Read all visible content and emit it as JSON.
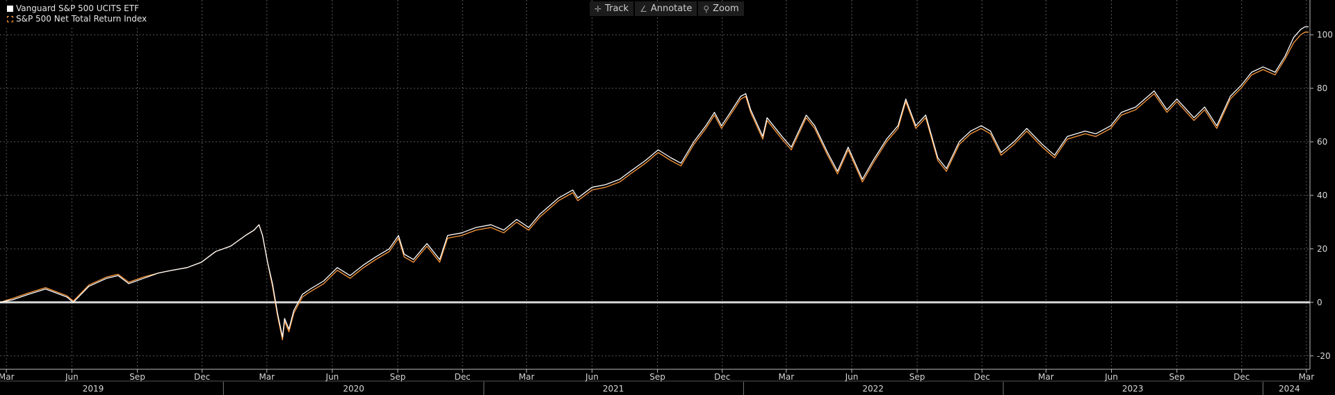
{
  "toolbar": {
    "track_label": "Track",
    "annotate_label": "Annotate",
    "zoom_label": "Zoom"
  },
  "legend": [
    {
      "name": "Vanguard S&P 500 UCITS ETF",
      "color": "#ffffff"
    },
    {
      "name": "S&P 500 Net Total Return Index",
      "color": "#ff9a3c"
    }
  ],
  "chart_data": {
    "type": "line",
    "title": "",
    "xlabel": "",
    "ylabel": "",
    "xlim": [
      "2019-02-20",
      "2024-03-06"
    ],
    "ylim": [
      -25,
      113
    ],
    "y_ticks": [
      -20,
      0,
      20,
      40,
      60,
      80,
      100
    ],
    "grid": true,
    "legend_position": "top-left",
    "baseline": 0,
    "x_tick_labels": [
      {
        "date": "2019-03-01",
        "label": "Mar"
      },
      {
        "date": "2019-06-01",
        "label": "Jun"
      },
      {
        "date": "2019-09-01",
        "label": "Sep"
      },
      {
        "date": "2019-12-01",
        "label": "Dec"
      },
      {
        "date": "2020-03-01",
        "label": "Mar"
      },
      {
        "date": "2020-06-01",
        "label": "Jun"
      },
      {
        "date": "2020-09-01",
        "label": "Sep"
      },
      {
        "date": "2020-12-01",
        "label": "Dec"
      },
      {
        "date": "2021-03-01",
        "label": "Mar"
      },
      {
        "date": "2021-06-01",
        "label": "Jun"
      },
      {
        "date": "2021-09-01",
        "label": "Sep"
      },
      {
        "date": "2021-12-01",
        "label": "Dec"
      },
      {
        "date": "2022-03-01",
        "label": "Mar"
      },
      {
        "date": "2022-06-01",
        "label": "Jun"
      },
      {
        "date": "2022-09-01",
        "label": "Sep"
      },
      {
        "date": "2022-12-01",
        "label": "Dec"
      },
      {
        "date": "2023-03-01",
        "label": "Mar"
      },
      {
        "date": "2023-06-01",
        "label": "Jun"
      },
      {
        "date": "2023-09-01",
        "label": "Sep"
      },
      {
        "date": "2023-12-01",
        "label": "Dec"
      },
      {
        "date": "2024-03-01",
        "label": "Mar"
      }
    ],
    "year_labels": [
      {
        "year": "2019",
        "date": "2019-07-01"
      },
      {
        "year": "2020",
        "date": "2020-07-01"
      },
      {
        "year": "2021",
        "date": "2021-07-01"
      },
      {
        "year": "2022",
        "date": "2022-07-01"
      },
      {
        "year": "2023",
        "date": "2023-07-01"
      },
      {
        "year": "2024",
        "date": "2024-02-06"
      }
    ],
    "year_separators": [
      "2019-12-31",
      "2020-12-31",
      "2021-12-31",
      "2022-12-31",
      "2023-12-31"
    ],
    "series": [
      {
        "name": "Vanguard S&P 500 UCITS ETF",
        "color": "#ffffff",
        "points": [
          [
            "2019-02-20",
            0
          ],
          [
            "2019-03-10",
            1
          ],
          [
            "2019-04-01",
            3
          ],
          [
            "2019-04-25",
            5
          ],
          [
            "2019-05-05",
            4
          ],
          [
            "2019-05-25",
            2
          ],
          [
            "2019-06-03",
            0
          ],
          [
            "2019-06-25",
            6
          ],
          [
            "2019-07-20",
            9
          ],
          [
            "2019-08-05",
            10
          ],
          [
            "2019-08-20",
            7
          ],
          [
            "2019-09-10",
            9
          ],
          [
            "2019-10-01",
            11
          ],
          [
            "2019-10-20",
            12
          ],
          [
            "2019-11-10",
            13
          ],
          [
            "2019-11-30",
            15
          ],
          [
            "2019-12-20",
            19
          ],
          [
            "2020-01-10",
            21
          ],
          [
            "2020-01-31",
            25
          ],
          [
            "2020-02-12",
            27
          ],
          [
            "2020-02-19",
            29
          ],
          [
            "2020-02-24",
            25
          ],
          [
            "2020-03-02",
            15
          ],
          [
            "2020-03-09",
            7
          ],
          [
            "2020-03-16",
            -4
          ],
          [
            "2020-03-23",
            -13
          ],
          [
            "2020-03-26",
            -6
          ],
          [
            "2020-04-01",
            -10
          ],
          [
            "2020-04-08",
            -3
          ],
          [
            "2020-04-20",
            3
          ],
          [
            "2020-05-01",
            5
          ],
          [
            "2020-05-20",
            8
          ],
          [
            "2020-06-08",
            13
          ],
          [
            "2020-06-26",
            10
          ],
          [
            "2020-07-15",
            14
          ],
          [
            "2020-08-01",
            17
          ],
          [
            "2020-08-20",
            20
          ],
          [
            "2020-09-02",
            25
          ],
          [
            "2020-09-10",
            18
          ],
          [
            "2020-09-23",
            16
          ],
          [
            "2020-10-12",
            22
          ],
          [
            "2020-10-30",
            16
          ],
          [
            "2020-11-10",
            25
          ],
          [
            "2020-11-30",
            26
          ],
          [
            "2020-12-20",
            28
          ],
          [
            "2021-01-10",
            29
          ],
          [
            "2021-01-28",
            27
          ],
          [
            "2021-02-15",
            31
          ],
          [
            "2021-03-04",
            28
          ],
          [
            "2021-03-20",
            33
          ],
          [
            "2021-04-15",
            39
          ],
          [
            "2021-05-05",
            42
          ],
          [
            "2021-05-12",
            39
          ],
          [
            "2021-06-01",
            43
          ],
          [
            "2021-06-20",
            44
          ],
          [
            "2021-07-10",
            46
          ],
          [
            "2021-07-25",
            49
          ],
          [
            "2021-08-15",
            53
          ],
          [
            "2021-09-02",
            57
          ],
          [
            "2021-09-20",
            54
          ],
          [
            "2021-10-04",
            52
          ],
          [
            "2021-10-22",
            60
          ],
          [
            "2021-11-08",
            66
          ],
          [
            "2021-11-20",
            71
          ],
          [
            "2021-11-30",
            66
          ],
          [
            "2021-12-10",
            70
          ],
          [
            "2021-12-27",
            77
          ],
          [
            "2022-01-03",
            78
          ],
          [
            "2022-01-10",
            72
          ],
          [
            "2022-01-27",
            62
          ],
          [
            "2022-02-02",
            69
          ],
          [
            "2022-02-23",
            62
          ],
          [
            "2022-03-08",
            58
          ],
          [
            "2022-03-29",
            70
          ],
          [
            "2022-04-10",
            66
          ],
          [
            "2022-04-28",
            56
          ],
          [
            "2022-05-12",
            49
          ],
          [
            "2022-05-27",
            58
          ],
          [
            "2022-06-16",
            46
          ],
          [
            "2022-07-01",
            53
          ],
          [
            "2022-07-20",
            61
          ],
          [
            "2022-08-05",
            66
          ],
          [
            "2022-08-16",
            76
          ],
          [
            "2022-08-30",
            66
          ],
          [
            "2022-09-13",
            70
          ],
          [
            "2022-09-30",
            54
          ],
          [
            "2022-10-12",
            50
          ],
          [
            "2022-10-30",
            60
          ],
          [
            "2022-11-15",
            64
          ],
          [
            "2022-11-30",
            66
          ],
          [
            "2022-12-13",
            64
          ],
          [
            "2022-12-28",
            56
          ],
          [
            "2023-01-15",
            60
          ],
          [
            "2023-02-02",
            65
          ],
          [
            "2023-02-24",
            59
          ],
          [
            "2023-03-13",
            55
          ],
          [
            "2023-03-31",
            62
          ],
          [
            "2023-04-25",
            64
          ],
          [
            "2023-05-10",
            63
          ],
          [
            "2023-05-31",
            66
          ],
          [
            "2023-06-15",
            71
          ],
          [
            "2023-07-05",
            73
          ],
          [
            "2023-07-31",
            79
          ],
          [
            "2023-08-18",
            72
          ],
          [
            "2023-09-01",
            76
          ],
          [
            "2023-09-25",
            69
          ],
          [
            "2023-10-10",
            73
          ],
          [
            "2023-10-27",
            66
          ],
          [
            "2023-11-15",
            77
          ],
          [
            "2023-11-30",
            81
          ],
          [
            "2023-12-15",
            86
          ],
          [
            "2023-12-31",
            88
          ],
          [
            "2024-01-17",
            86
          ],
          [
            "2024-01-31",
            92
          ],
          [
            "2024-02-12",
            99
          ],
          [
            "2024-02-22",
            102
          ],
          [
            "2024-02-28",
            103
          ],
          [
            "2024-03-04",
            103
          ]
        ]
      },
      {
        "name": "S&P 500 Net Total Return Index",
        "color": "#ff9a3c",
        "points": [
          [
            "2019-02-20",
            0
          ],
          [
            "2019-03-10",
            1.5
          ],
          [
            "2019-04-01",
            3.5
          ],
          [
            "2019-04-25",
            5.5
          ],
          [
            "2019-05-05",
            4.5
          ],
          [
            "2019-05-25",
            2.5
          ],
          [
            "2019-06-03",
            0.5
          ],
          [
            "2019-06-25",
            6.5
          ],
          [
            "2019-07-20",
            9.5
          ],
          [
            "2019-08-05",
            10.5
          ],
          [
            "2019-08-20",
            7.5
          ],
          [
            "2019-09-10",
            9.5
          ],
          [
            "2019-10-01",
            11
          ],
          [
            "2019-10-20",
            12
          ],
          [
            "2019-11-10",
            13
          ],
          [
            "2019-11-30",
            15
          ],
          [
            "2019-12-20",
            19
          ],
          [
            "2020-01-10",
            21
          ],
          [
            "2020-01-31",
            25
          ],
          [
            "2020-02-12",
            27
          ],
          [
            "2020-02-19",
            29
          ],
          [
            "2020-02-24",
            25
          ],
          [
            "2020-03-02",
            15
          ],
          [
            "2020-03-09",
            6
          ],
          [
            "2020-03-16",
            -5
          ],
          [
            "2020-03-23",
            -14
          ],
          [
            "2020-03-26",
            -7
          ],
          [
            "2020-04-01",
            -11
          ],
          [
            "2020-04-08",
            -4
          ],
          [
            "2020-04-20",
            2
          ],
          [
            "2020-05-01",
            4
          ],
          [
            "2020-05-20",
            7
          ],
          [
            "2020-06-08",
            12
          ],
          [
            "2020-06-26",
            9
          ],
          [
            "2020-07-15",
            13
          ],
          [
            "2020-08-01",
            16
          ],
          [
            "2020-08-20",
            19
          ],
          [
            "2020-09-02",
            24
          ],
          [
            "2020-09-10",
            17
          ],
          [
            "2020-09-23",
            15
          ],
          [
            "2020-10-12",
            21
          ],
          [
            "2020-10-30",
            15
          ],
          [
            "2020-11-10",
            24
          ],
          [
            "2020-11-30",
            25
          ],
          [
            "2020-12-20",
            27
          ],
          [
            "2021-01-10",
            28
          ],
          [
            "2021-01-28",
            26
          ],
          [
            "2021-02-15",
            30
          ],
          [
            "2021-03-04",
            27
          ],
          [
            "2021-03-20",
            32
          ],
          [
            "2021-04-15",
            38
          ],
          [
            "2021-05-05",
            41
          ],
          [
            "2021-05-12",
            38
          ],
          [
            "2021-06-01",
            42
          ],
          [
            "2021-06-20",
            43
          ],
          [
            "2021-07-10",
            45
          ],
          [
            "2021-07-25",
            48
          ],
          [
            "2021-08-15",
            52
          ],
          [
            "2021-09-02",
            56
          ],
          [
            "2021-09-20",
            53
          ],
          [
            "2021-10-04",
            51
          ],
          [
            "2021-10-22",
            59
          ],
          [
            "2021-11-08",
            65
          ],
          [
            "2021-11-20",
            70
          ],
          [
            "2021-11-30",
            65
          ],
          [
            "2021-12-10",
            69
          ],
          [
            "2021-12-27",
            76
          ],
          [
            "2022-01-03",
            77
          ],
          [
            "2022-01-10",
            71
          ],
          [
            "2022-01-27",
            61
          ],
          [
            "2022-02-02",
            68
          ],
          [
            "2022-02-23",
            61
          ],
          [
            "2022-03-08",
            57
          ],
          [
            "2022-03-29",
            69
          ],
          [
            "2022-04-10",
            65
          ],
          [
            "2022-04-28",
            55
          ],
          [
            "2022-05-12",
            48
          ],
          [
            "2022-05-27",
            57
          ],
          [
            "2022-06-16",
            45
          ],
          [
            "2022-07-01",
            52
          ],
          [
            "2022-07-20",
            60
          ],
          [
            "2022-08-05",
            65
          ],
          [
            "2022-08-16",
            75
          ],
          [
            "2022-08-30",
            65
          ],
          [
            "2022-09-13",
            69
          ],
          [
            "2022-09-30",
            53
          ],
          [
            "2022-10-12",
            49
          ],
          [
            "2022-10-30",
            59
          ],
          [
            "2022-11-15",
            63
          ],
          [
            "2022-11-30",
            65
          ],
          [
            "2022-12-13",
            63
          ],
          [
            "2022-12-28",
            55
          ],
          [
            "2023-01-15",
            59
          ],
          [
            "2023-02-02",
            64
          ],
          [
            "2023-02-24",
            58
          ],
          [
            "2023-03-13",
            54
          ],
          [
            "2023-03-31",
            61
          ],
          [
            "2023-04-25",
            63
          ],
          [
            "2023-05-10",
            62
          ],
          [
            "2023-05-31",
            65
          ],
          [
            "2023-06-15",
            70
          ],
          [
            "2023-07-05",
            72
          ],
          [
            "2023-07-31",
            78
          ],
          [
            "2023-08-18",
            71
          ],
          [
            "2023-09-01",
            75
          ],
          [
            "2023-09-25",
            68
          ],
          [
            "2023-10-10",
            72
          ],
          [
            "2023-10-27",
            65
          ],
          [
            "2023-11-15",
            76
          ],
          [
            "2023-11-30",
            80
          ],
          [
            "2023-12-15",
            85
          ],
          [
            "2023-12-31",
            87
          ],
          [
            "2024-01-17",
            85
          ],
          [
            "2024-01-31",
            91
          ],
          [
            "2024-02-12",
            97
          ],
          [
            "2024-02-22",
            100
          ],
          [
            "2024-02-28",
            101
          ],
          [
            "2024-03-04",
            101
          ]
        ]
      }
    ]
  }
}
